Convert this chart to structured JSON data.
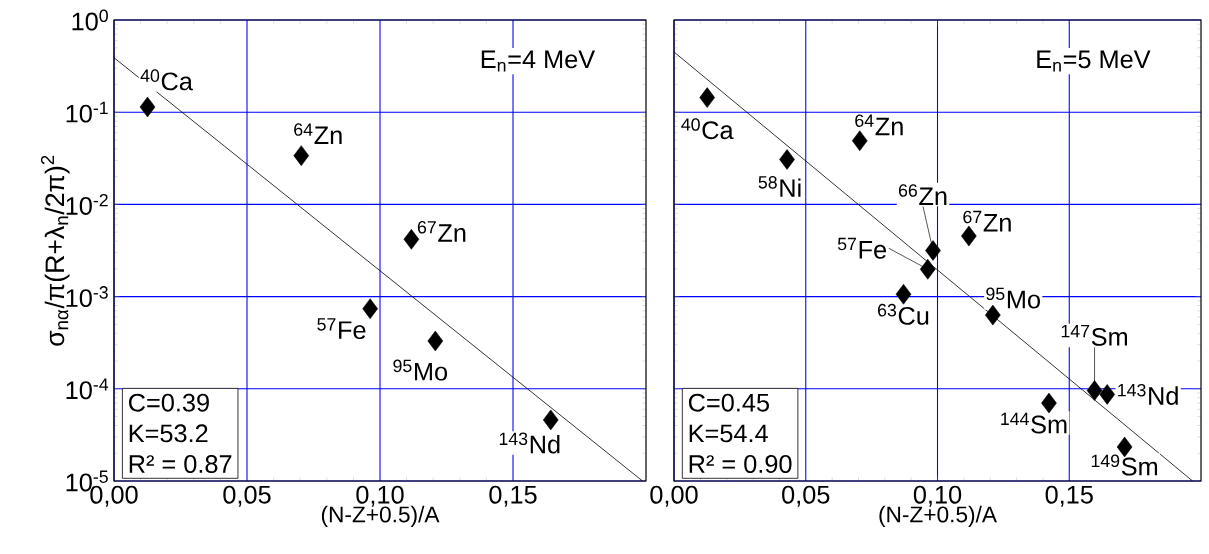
{
  "chart_data": [
    {
      "type": "scatter",
      "xlabel": "(N-Z+0.5)/A",
      "ylabel": "σ$_{nα}$/π(R+λ$_{n}$/2π)$^{2}$",
      "log": "y",
      "grid": true,
      "xlim": [
        0,
        0.2
      ],
      "xticks": [
        {
          "value": 0,
          "label": "0,00"
        },
        {
          "value": 0.05,
          "label": "0,05"
        },
        {
          "value": 0.1,
          "label": "0,10"
        },
        {
          "value": 0.15,
          "label": "0,15"
        }
      ],
      "ylim": [
        1e-05,
        1
      ],
      "yticks": [
        {
          "value": 1e-05,
          "label": "10$^{-5}$"
        },
        {
          "value": 0.0001,
          "label": "10$^{-4}$"
        },
        {
          "value": 0.001,
          "label": "10$^{-3}$"
        },
        {
          "value": 0.01,
          "label": "10$^{-2}$"
        },
        {
          "value": 0.1,
          "label": "10$^{-1}$"
        },
        {
          "value": 1,
          "label": "10$^{0}$"
        }
      ],
      "series": [
        {
          "color": "#000000",
          "marker": "diamond",
          "x": [
            0.0126,
            0.0704,
            0.1118,
            0.0963,
            0.1208,
            0.1642
          ],
          "values": [
            0.114,
            0.0338,
            0.00418,
            0.00074,
            0.00033,
            4.6e-05
          ]
        },
        {
          "type": "line",
          "color": "#000000",
          "marker": "none",
          "x": [
            0,
            0.1987
          ],
          "values": [
            0.39,
            1e-05
          ]
        }
      ],
      "annotations": [
        "E$_{n}$=4 MeV",
        "C=0.39",
        "K=53.2",
        "R² = 0.87",
        {
          "text": "$^{40}$Ca",
          "x": 0.0126,
          "y": 0.114
        },
        {
          "text": "$^{64}$Zn",
          "x": 0.0704,
          "y": 0.0338
        },
        {
          "text": "$^{67}$Zn",
          "x": 0.1118,
          "y": 0.00418
        },
        {
          "text": "$^{57}$Fe",
          "x": 0.0963,
          "y": 0.00074
        },
        {
          "text": "$^{95}$Mo",
          "x": 0.1208,
          "y": 0.00033
        },
        {
          "text": "$^{143}$Nd",
          "x": 0.1642,
          "y": 4.6e-05
        }
      ]
    },
    {
      "type": "scatter",
      "xlabel": "(N-Z+0.5)/A",
      "log": "y",
      "grid": true,
      "tick_labels": "x",
      "xlim": [
        0,
        0.2
      ],
      "xticks": [
        {
          "value": 0,
          "label": "0,00"
        },
        {
          "value": 0.05,
          "label": "0,05"
        },
        {
          "value": 0.1,
          "label": "0,10"
        },
        {
          "value": 0.15,
          "label": "0,15"
        }
      ],
      "ylim": [
        1e-05,
        1
      ],
      "yticks": [
        {
          "value": 1e-05,
          "label": null
        },
        {
          "value": 0.0001,
          "label": null
        },
        {
          "value": 0.001,
          "label": null
        },
        {
          "value": 0.01,
          "label": null
        },
        {
          "value": 0.1,
          "label": null
        },
        {
          "value": 1,
          "label": null
        }
      ],
      "series": [
        {
          "color": "#000000",
          "marker": "diamond",
          "x": [
            0.0126,
            0.0429,
            0.0705,
            0.0983,
            0.1119,
            0.0963,
            0.0871,
            0.121,
            0.1596,
            0.1644,
            0.1423,
            0.171
          ],
          "values": [
            0.144,
            0.0307,
            0.049,
            0.00316,
            0.00454,
            0.00198,
            0.00106,
            0.00063,
            9.6e-05,
            8.7e-05,
            7e-05,
            2.34e-05
          ]
        },
        {
          "type": "line",
          "color": "#000000",
          "marker": "none",
          "x": [
            0,
            0.1968
          ],
          "values": [
            0.45,
            1e-05
          ]
        }
      ],
      "annotations": [
        "E$_{n}$=5 MeV",
        "C=0.45",
        "K=54.4",
        "R² = 0.90",
        {
          "text": "$^{40}$Ca",
          "x": 0.0126,
          "y": 0.144
        },
        {
          "text": "$^{58}$Ni",
          "x": 0.0429,
          "y": 0.0307
        },
        {
          "text": "$^{64}$Zn",
          "x": 0.0705,
          "y": 0.049
        },
        {
          "text": "$^{66}$Zn",
          "x": 0.0983,
          "y": 0.00316
        },
        {
          "text": "$^{67}$Zn",
          "x": 0.1119,
          "y": 0.00454
        },
        {
          "text": "$^{57}$Fe",
          "x": 0.0963,
          "y": 0.00198
        },
        {
          "text": "$^{63}$Cu",
          "x": 0.0871,
          "y": 0.00106
        },
        {
          "text": "$^{95}$Mo",
          "x": 0.121,
          "y": 0.00063
        },
        {
          "text": "$^{147}$Sm",
          "x": 0.1596,
          "y": 9.6e-05
        },
        {
          "text": "$^{143}$Nd",
          "x": 0.1644,
          "y": 8.7e-05
        },
        {
          "text": "$^{144}$Sm",
          "x": 0.1423,
          "y": 7e-05
        },
        {
          "text": "$^{149}$Sm",
          "x": 0.171,
          "y": 2.34e-05
        }
      ]
    }
  ]
}
